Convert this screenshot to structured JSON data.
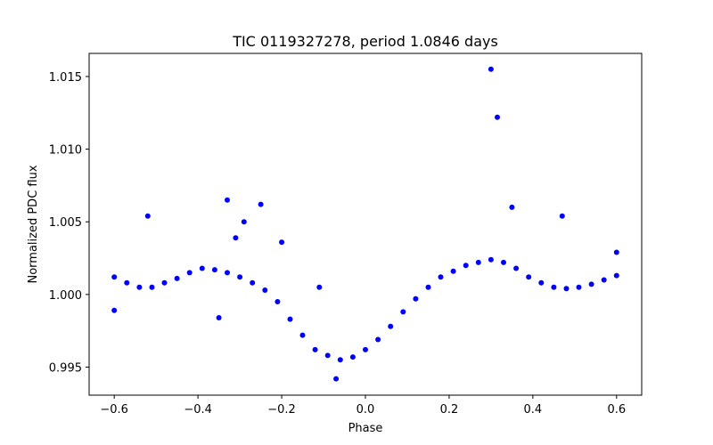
{
  "chart_data": {
    "type": "scatter",
    "title": "TIC 0119327278, period 1.0846 days",
    "xlabel": "Phase",
    "ylabel": "Normalized PDC flux",
    "xlim": [
      -0.66,
      0.66
    ],
    "ylim": [
      0.99307,
      1.01659
    ],
    "xticks": [
      -0.6,
      -0.4,
      -0.2,
      0.0,
      0.2,
      0.4,
      0.6
    ],
    "xtick_labels": [
      "−0.6",
      "−0.4",
      "−0.2",
      "0.0",
      "0.2",
      "0.4",
      "0.6"
    ],
    "yticks": [
      0.995,
      1.0,
      1.005,
      1.01,
      1.015
    ],
    "ytick_labels": [
      "0.995",
      "1.000",
      "1.005",
      "1.010",
      "1.015"
    ],
    "grid": false,
    "marker_color": "#0000ff",
    "series": [
      {
        "x": [
          -0.6,
          -0.57,
          -0.54,
          -0.51,
          -0.48,
          -0.45,
          -0.42,
          -0.39,
          -0.36,
          -0.33,
          -0.3,
          -0.27,
          -0.24,
          -0.21,
          -0.18,
          -0.15,
          -0.12,
          -0.09,
          -0.06,
          -0.03,
          0.0,
          0.03,
          0.06,
          0.09,
          0.12,
          0.15,
          0.18,
          0.21,
          0.24,
          0.27,
          0.3,
          0.33,
          0.36,
          0.39,
          0.42,
          0.45,
          0.48,
          0.51,
          0.54,
          0.57,
          0.6
        ],
        "y": [
          1.0012,
          1.0008,
          1.0005,
          1.0005,
          1.0008,
          1.0011,
          1.0015,
          1.0018,
          1.0017,
          1.0015,
          1.0012,
          1.0008,
          1.0003,
          0.9995,
          0.9983,
          0.9972,
          0.9962,
          0.9958,
          0.9955,
          0.9957,
          0.9962,
          0.9969,
          0.9978,
          0.9988,
          0.9997,
          1.0005,
          1.0012,
          1.0016,
          1.002,
          1.0022,
          1.0024,
          1.0022,
          1.0018,
          1.0012,
          1.0008,
          1.0005,
          1.0004,
          1.0005,
          1.0007,
          1.001,
          1.0013
        ]
      },
      {
        "x": [
          -0.52,
          -0.35,
          -0.33,
          -0.31,
          -0.29,
          -0.25,
          -0.2,
          -0.11,
          -0.07,
          0.3,
          0.315,
          0.35,
          0.47,
          -0.6,
          0.6
        ],
        "y": [
          1.0054,
          0.9984,
          1.0065,
          1.0039,
          1.005,
          1.0062,
          1.0036,
          1.0005,
          0.9942,
          1.0155,
          1.0122,
          1.006,
          1.0054,
          0.9989,
          1.0029
        ]
      }
    ]
  }
}
